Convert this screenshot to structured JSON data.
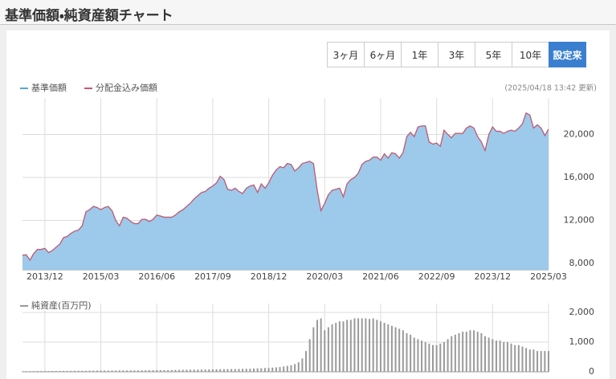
{
  "page_title": "基準価額・純資産額チャート",
  "range_buttons": [
    "3ヶ月",
    "6ヶ月",
    "1年",
    "3年",
    "5年",
    "10年",
    "設定来"
  ],
  "active_button_index": 6,
  "updated": "(2025/04/18 13:42 更新)",
  "chart_data": [
    {
      "type": "line",
      "area": true,
      "grid": true,
      "categories": [
        null,
        null,
        null,
        null,
        null,
        null,
        "2013/12",
        null,
        null,
        null,
        null,
        null,
        null,
        null,
        null,
        null,
        null,
        null,
        null,
        null,
        null,
        "2015/03",
        null,
        null,
        null,
        null,
        null,
        null,
        null,
        null,
        null,
        null,
        null,
        null,
        null,
        null,
        "2016/06",
        null,
        null,
        null,
        null,
        null,
        null,
        null,
        null,
        null,
        null,
        null,
        null,
        null,
        null,
        "2017/09",
        null,
        null,
        null,
        null,
        null,
        null,
        null,
        null,
        null,
        null,
        null,
        null,
        null,
        null,
        "2018/12",
        null,
        null,
        null,
        null,
        null,
        null,
        null,
        null,
        null,
        null,
        null,
        null,
        null,
        null,
        "2020/03",
        null,
        null,
        null,
        null,
        null,
        null,
        null,
        null,
        null,
        null,
        null,
        null,
        null,
        null,
        "2021/06",
        null,
        null,
        null,
        null,
        null,
        null,
        null,
        null,
        null,
        null,
        null,
        null,
        null,
        null,
        "2022/09",
        null,
        null,
        null,
        null,
        null,
        null,
        null,
        null,
        null,
        null,
        null,
        null,
        null,
        null,
        "2023/12",
        null,
        null,
        null,
        null,
        null,
        null,
        null,
        null,
        null,
        null,
        null,
        null,
        null,
        null,
        "2025/03"
      ],
      "series": [
        {
          "name": "基準価額",
          "color": "#5aa5d8",
          "fill_color": "#9dc9ea",
          "values": [
            8750,
            8800,
            8300,
            8900,
            9300,
            9300,
            9400,
            9000,
            9200,
            9500,
            9800,
            10400,
            10500,
            10800,
            11000,
            11100,
            11500,
            12800,
            13000,
            13300,
            13200,
            13000,
            13200,
            13300,
            12900,
            12000,
            11500,
            12300,
            12200,
            11900,
            11700,
            11700,
            12100,
            12100,
            11900,
            12100,
            12500,
            12400,
            12300,
            12300,
            12300,
            12500,
            12800,
            13000,
            13300,
            13600,
            14000,
            14300,
            14600,
            14700,
            15000,
            15200,
            15500,
            16100,
            15800,
            14900,
            14800,
            15000,
            14700,
            14500,
            15000,
            15200,
            15300,
            14600,
            15400,
            15000,
            15500,
            16200,
            16700,
            17000,
            16900,
            17300,
            17200,
            16600,
            16900,
            17300,
            17400,
            17500,
            17300,
            14800,
            12900,
            13600,
            14400,
            14800,
            14900,
            15000,
            14200,
            15400,
            15800,
            16000,
            16400,
            17200,
            17500,
            17600,
            17900,
            17900,
            17600,
            18200,
            17800,
            18300,
            18200,
            17800,
            18300,
            19800,
            20200,
            19800,
            20700,
            20800,
            20800,
            19300,
            19100,
            19200,
            18900,
            20400,
            20000,
            19700,
            20100,
            20100,
            20100,
            20600,
            20800,
            20600,
            19800,
            19300,
            18500,
            20000,
            20700,
            20300,
            20300,
            20100,
            20300,
            20400,
            20300,
            20600,
            21000,
            22000,
            21800,
            20600,
            20900,
            20600,
            19900,
            20500
          ]
        },
        {
          "name": "分配金込み価額",
          "color": "#c9576c",
          "values": [
            8750,
            8800,
            8300,
            8900,
            9300,
            9300,
            9400,
            9000,
            9200,
            9500,
            9800,
            10400,
            10500,
            10800,
            11000,
            11100,
            11500,
            12800,
            13000,
            13300,
            13200,
            13000,
            13200,
            13300,
            12900,
            12000,
            11500,
            12300,
            12200,
            11900,
            11700,
            11700,
            12100,
            12100,
            11900,
            12100,
            12500,
            12400,
            12300,
            12300,
            12300,
            12500,
            12800,
            13000,
            13300,
            13600,
            14000,
            14300,
            14600,
            14700,
            15000,
            15200,
            15500,
            16100,
            15800,
            14900,
            14800,
            15000,
            14700,
            14500,
            15000,
            15200,
            15300,
            14600,
            15400,
            15000,
            15500,
            16200,
            16700,
            17000,
            16900,
            17300,
            17200,
            16600,
            16900,
            17300,
            17400,
            17500,
            17300,
            14800,
            12900,
            13600,
            14400,
            14800,
            14900,
            15000,
            14200,
            15400,
            15800,
            16000,
            16400,
            17200,
            17500,
            17600,
            17900,
            17900,
            17600,
            18200,
            17800,
            18300,
            18200,
            17800,
            18300,
            19800,
            20200,
            19800,
            20700,
            20800,
            20800,
            19300,
            19100,
            19200,
            18900,
            20400,
            20000,
            19700,
            20100,
            20100,
            20100,
            20600,
            20800,
            20600,
            19800,
            19300,
            18500,
            20000,
            20700,
            20300,
            20300,
            20100,
            20300,
            20400,
            20300,
            20600,
            21000,
            22000,
            21800,
            20600,
            20900,
            20600,
            19900,
            20500
          ]
        }
      ],
      "ylim": [
        7400,
        23400
      ],
      "yticks": [
        {
          "value": 8000,
          "label": "8,000"
        },
        {
          "value": 12000,
          "label": "12,000"
        },
        {
          "value": 16000,
          "label": "16,000"
        },
        {
          "value": 20000,
          "label": "20,000"
        }
      ]
    },
    {
      "type": "bar",
      "grid": true,
      "series": [
        {
          "name": "純資産(百万円)",
          "color": "#9a9a9a",
          "values": [
            20,
            20,
            22,
            22,
            24,
            25,
            25,
            26,
            27,
            28,
            28,
            30,
            30,
            32,
            32,
            33,
            34,
            35,
            36,
            38,
            40,
            40,
            42,
            42,
            43,
            44,
            45,
            46,
            46,
            47,
            48,
            48,
            50,
            50,
            52,
            52,
            54,
            55,
            56,
            58,
            60,
            62,
            64,
            66,
            68,
            70,
            72,
            74,
            76,
            78,
            80,
            82,
            84,
            86,
            88,
            90,
            92,
            94,
            96,
            98,
            100,
            105,
            110,
            115,
            120,
            125,
            130,
            140,
            150,
            160,
            180,
            200,
            220,
            260,
            320,
            450,
            700,
            1100,
            1500,
            1750,
            1800,
            1400,
            1500,
            1600,
            1650,
            1700,
            1700,
            1750,
            1750,
            1800,
            1800,
            1800,
            1800,
            1780,
            1800,
            1750,
            1700,
            1650,
            1600,
            1550,
            1500,
            1450,
            1400,
            1300,
            1250,
            1150,
            1100,
            1050,
            1000,
            950,
            900,
            900,
            950,
            1000,
            1100,
            1200,
            1250,
            1300,
            1350,
            1350,
            1400,
            1400,
            1350,
            1300,
            1200,
            1150,
            1100,
            1050,
            1050,
            1000,
            1000,
            950,
            900,
            900,
            850,
            800,
            750,
            750,
            700,
            700,
            700,
            700
          ]
        }
      ],
      "ylim": [
        0,
        2300
      ],
      "yticks": [
        0,
        {
          "value": 1000,
          "label": "1,000"
        },
        {
          "value": 2000,
          "label": "2,000"
        }
      ]
    }
  ]
}
